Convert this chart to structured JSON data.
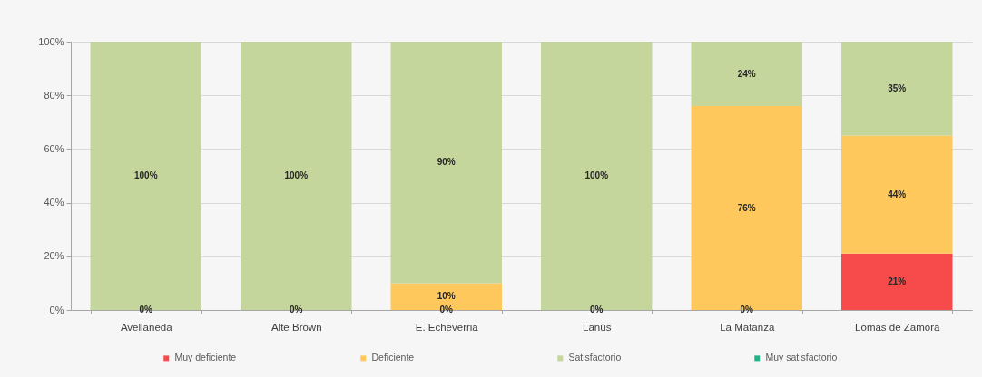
{
  "chart_data": {
    "type": "bar",
    "stacked": true,
    "categories": [
      "Avellaneda",
      "Alte Brown",
      "E. Echeverria",
      "Lanús",
      "La Matanza",
      "Lomas de Zamora"
    ],
    "series": [
      {
        "name": "Muy deficiente",
        "color": "#f74a4a",
        "values": [
          0,
          0,
          0,
          0,
          0,
          21
        ],
        "value_labels": [
          null,
          null,
          null,
          null,
          null,
          "21%"
        ]
      },
      {
        "name": "Deficiente",
        "color": "#fec85c",
        "values": [
          0,
          0,
          10,
          0,
          76,
          44
        ],
        "value_labels": [
          null,
          null,
          "10%",
          null,
          "76%",
          "44%"
        ]
      },
      {
        "name": "Satisfactorio",
        "color": "#c4d69c",
        "values": [
          100,
          100,
          90,
          100,
          24,
          35
        ],
        "value_labels": [
          "100%",
          "100%",
          "90%",
          "100%",
          "24%",
          "35%"
        ]
      },
      {
        "name": "Muy satisfactorio",
        "color": "#1fb488",
        "values": [
          null,
          null,
          null,
          null,
          null,
          null
        ]
      }
    ],
    "annotations": [
      {
        "text": "0%",
        "x": "Avellaneda",
        "y": 0
      },
      {
        "text": "0%",
        "x": "Alte Brown",
        "y": 0
      },
      {
        "text": "0%",
        "x": "E. Echeverria",
        "y": 0
      },
      {
        "text": "0%",
        "x": "Lanús",
        "y": 0
      },
      {
        "text": "0%",
        "x": "La Matanza",
        "y": 0
      }
    ],
    "ylim": [
      0,
      100
    ],
    "yticks": [
      {
        "value": 0,
        "label": "0%"
      },
      {
        "value": 20,
        "label": "20%"
      },
      {
        "value": 40,
        "label": "40%"
      },
      {
        "value": 60,
        "label": "60%"
      },
      {
        "value": 80,
        "label": "80%"
      },
      {
        "value": 100,
        "label": "100%"
      }
    ],
    "grid": "y",
    "legend": "bottom"
  }
}
